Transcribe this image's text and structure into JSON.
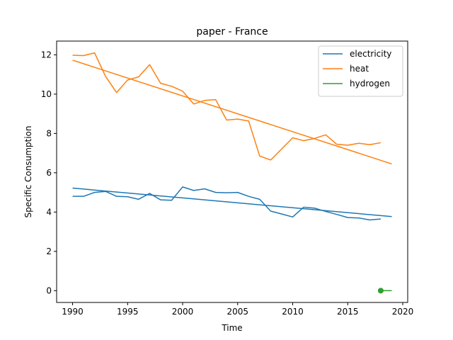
{
  "chart_data": {
    "type": "line",
    "title": "paper - France",
    "xlabel": "Time",
    "ylabel": "Specific Consumption",
    "xlim": [
      1988.55,
      2020.45
    ],
    "ylim": [
      -0.6,
      12.7
    ],
    "xticks": [
      1990,
      1995,
      2000,
      2005,
      2010,
      2015,
      2020
    ],
    "yticks": [
      0,
      2,
      4,
      6,
      8,
      10,
      12
    ],
    "grid": false,
    "legend_position": "top-right",
    "series": [
      {
        "name": "electricity",
        "color": "#1f77b4",
        "x": [
          1990,
          1991,
          1992,
          1993,
          1994,
          1995,
          1996,
          1997,
          1998,
          1999,
          2000,
          2001,
          2002,
          2003,
          2004,
          2005,
          2006,
          2007,
          2008,
          2009,
          2010,
          2011,
          2012,
          2013,
          2014,
          2015,
          2016,
          2017,
          2018
        ],
        "y": [
          4.8,
          4.8,
          5.0,
          5.05,
          4.8,
          4.78,
          4.65,
          4.95,
          4.62,
          4.6,
          5.28,
          5.1,
          5.18,
          5.0,
          4.98,
          5.0,
          4.8,
          4.65,
          4.05,
          3.9,
          3.75,
          4.25,
          4.2,
          4.03,
          3.88,
          3.72,
          3.7,
          3.6,
          3.65
        ],
        "trend": {
          "x": [
            1990,
            2019
          ],
          "y": [
            5.22,
            3.77
          ]
        }
      },
      {
        "name": "heat",
        "color": "#ff7f0e",
        "x": [
          1990,
          1991,
          1992,
          1993,
          1994,
          1995,
          1996,
          1997,
          1998,
          1999,
          2000,
          2001,
          2002,
          2003,
          2004,
          2005,
          2006,
          2007,
          2008,
          2010,
          2011,
          2012,
          2013,
          2014,
          2015,
          2016,
          2017,
          2018
        ],
        "y": [
          11.98,
          11.96,
          12.1,
          10.9,
          10.08,
          10.72,
          10.88,
          11.5,
          10.55,
          10.4,
          10.15,
          9.5,
          9.68,
          9.72,
          8.68,
          8.73,
          8.63,
          6.85,
          6.65,
          7.78,
          7.63,
          7.75,
          7.93,
          7.45,
          7.4,
          7.5,
          7.43,
          7.53
        ],
        "trend": {
          "x": [
            1990,
            2019
          ],
          "y": [
            11.73,
            6.45
          ]
        }
      },
      {
        "name": "hydrogen",
        "color": "#2ca02c",
        "x": [
          2018
        ],
        "y": [
          0.0
        ],
        "trend": {
          "x": [
            2018,
            2019
          ],
          "y": [
            0.0,
            0.0
          ]
        }
      }
    ]
  }
}
